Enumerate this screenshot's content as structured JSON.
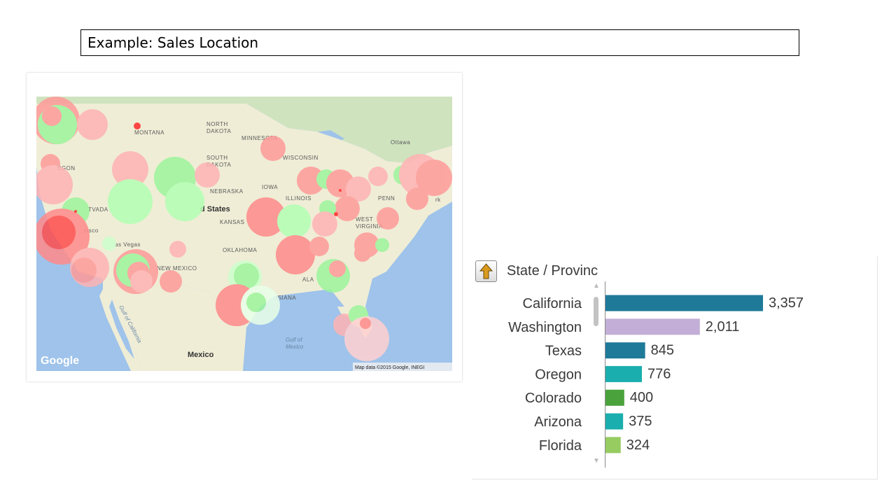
{
  "slide": {
    "title": "Example:  Sales Location"
  },
  "map": {
    "region_labels": [
      "MONTANA",
      "NORTH",
      "DAKOTA",
      "SOUTH",
      "DAKOTA",
      "MINNESOTA",
      "WISCONSIN",
      "IOWA",
      "NEBRASKA",
      "ILLINOIS",
      "KANSAS",
      "OKLAHOMA",
      "NEW MEXICO",
      "WEST",
      "VIRGINIA",
      "PENN",
      "ALA",
      "ISIANA",
      "EGON",
      "TVADA",
      "cisco",
      "as Vegas",
      "d States",
      "Ottawa",
      "rk"
    ],
    "water_labels": [
      "Gulf of",
      "Mexico",
      "Gulf of California"
    ],
    "country_label": "Mexico",
    "logo": "Google",
    "attribution": "Map data ©2015 Google, INEGI",
    "colors": {
      "water": "#9fc3ea",
      "land": "#efedd6",
      "canada": "#cfe3bf",
      "bubble_red": "#ff8a8a",
      "bubble_green": "#9cf59c",
      "bubble_pink": "#ffc4c4"
    }
  },
  "chart": {
    "dimension_title": "State / Provinc",
    "up_icon": "up-arrow-icon",
    "scroll_up_glyph": "▲",
    "scroll_down_glyph": "▼"
  },
  "chart_data": {
    "type": "bar",
    "orientation": "horizontal",
    "title": "State / Provinc",
    "categories": [
      "California",
      "Washington",
      "Texas",
      "Oregon",
      "Colorado",
      "Arizona",
      "Florida"
    ],
    "values": [
      3357,
      2011,
      845,
      776,
      400,
      375,
      324
    ],
    "value_labels": [
      "3,357",
      "2,011",
      "845",
      "776",
      "400",
      "375",
      "324"
    ],
    "colors": [
      "#1f7a99",
      "#c2aed6",
      "#1f7a99",
      "#1aaeae",
      "#4aa23c",
      "#1aaeae",
      "#96cc60"
    ],
    "xlim": [
      0,
      3357
    ],
    "grid": false,
    "legend": "none"
  }
}
